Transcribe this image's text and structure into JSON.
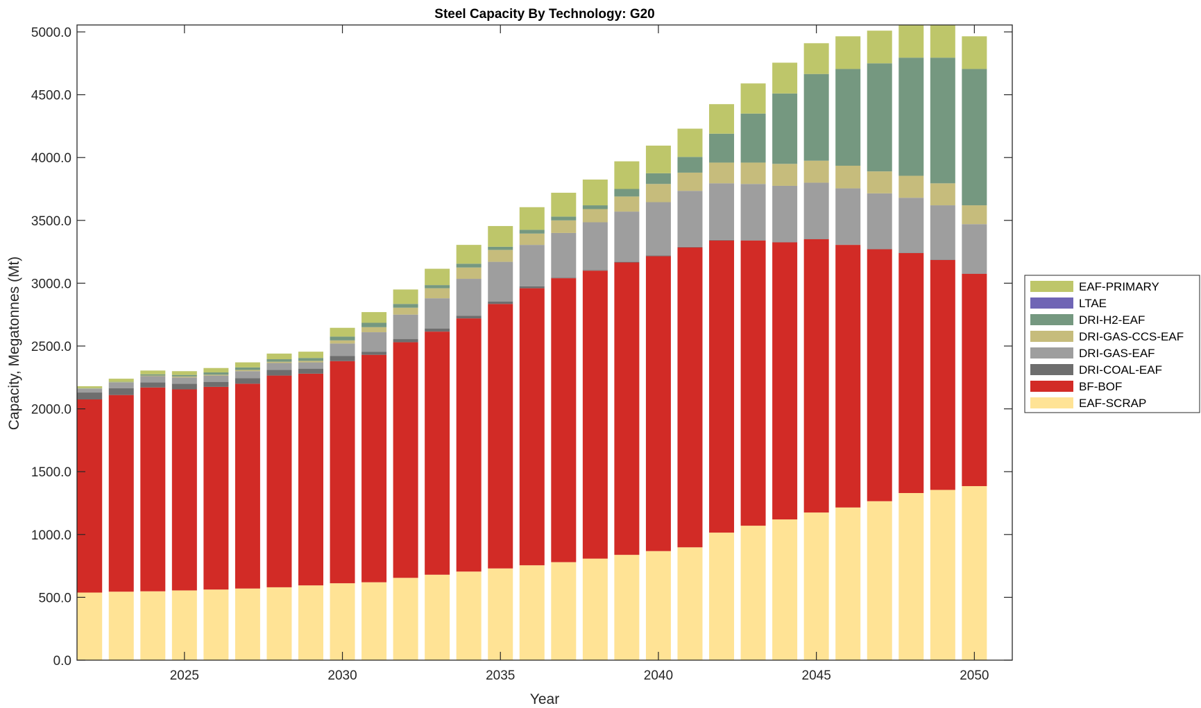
{
  "chart_data": {
    "type": "bar",
    "stacked": true,
    "title": "Steel Capacity By Technology: G20",
    "xlabel": "Year",
    "ylabel": "Capacity, Megatonnes (Mt)",
    "ylim": [
      0,
      5000
    ],
    "yticks": [
      0,
      500,
      1000,
      1500,
      2000,
      2500,
      3000,
      3500,
      4000,
      4500,
      5000
    ],
    "ytick_labels": [
      "0.0",
      "500.0",
      "1000.0",
      "1500.0",
      "2000.0",
      "2500.0",
      "3000.0",
      "3500.0",
      "4000.0",
      "4500.0",
      "5000.0"
    ],
    "xticks": [
      2025,
      2030,
      2035,
      2040,
      2045,
      2050
    ],
    "xtick_labels": [
      "2025",
      "2030",
      "2035",
      "2040",
      "2045",
      "2050"
    ],
    "xlim": [
      2021.6,
      2051.2
    ],
    "grid": false,
    "legend_position": "right",
    "categories": [
      2022,
      2023,
      2024,
      2025,
      2026,
      2027,
      2028,
      2029,
      2030,
      2031,
      2032,
      2033,
      2034,
      2035,
      2036,
      2037,
      2038,
      2039,
      2040,
      2041,
      2042,
      2043,
      2044,
      2045,
      2046,
      2047,
      2048,
      2049,
      2050
    ],
    "series": [
      {
        "name": "EAF-SCRAP",
        "color": "#FFE395",
        "values": [
          538,
          545,
          548,
          555,
          562,
          570,
          580,
          595,
          612,
          620,
          655,
          680,
          705,
          730,
          755,
          780,
          808,
          838,
          868,
          898,
          1015,
          1070,
          1120,
          1175,
          1215,
          1265,
          1330,
          1355,
          1385
        ]
      },
      {
        "name": "BF-BOF",
        "color": "#D22B26",
        "values": [
          1537,
          1565,
          1622,
          1600,
          1613,
          1630,
          1685,
          1685,
          1768,
          1810,
          1875,
          1935,
          2015,
          2105,
          2205,
          2260,
          2292,
          2327,
          2347,
          2387,
          2325,
          2270,
          2205,
          2175,
          2090,
          2005,
          1910,
          1830,
          1690
        ]
      },
      {
        "name": "DRI-COAL-EAF",
        "color": "#6E6E6E",
        "values": [
          55,
          55,
          40,
          45,
          40,
          45,
          45,
          40,
          40,
          25,
          25,
          25,
          20,
          20,
          15,
          5,
          5,
          5,
          5,
          5,
          5,
          2,
          2,
          2,
          2,
          2,
          2,
          2,
          2
        ]
      },
      {
        "name": "DRI-GAS-EAF",
        "color": "#9E9E9E",
        "values": [
          30,
          45,
          50,
          50,
          50,
          55,
          55,
          50,
          100,
          155,
          195,
          240,
          295,
          315,
          330,
          355,
          380,
          400,
          425,
          445,
          450,
          448,
          448,
          448,
          448,
          443,
          438,
          433,
          393
        ]
      },
      {
        "name": "DRI-GAS-CCS-EAF",
        "color": "#C6BC7C",
        "values": [
          2,
          2,
          5,
          8,
          7,
          10,
          10,
          12,
          25,
          40,
          55,
          80,
          90,
          95,
          90,
          100,
          105,
          120,
          145,
          145,
          165,
          170,
          175,
          175,
          180,
          175,
          175,
          175,
          150
        ]
      },
      {
        "name": "DRI-H2-EAF",
        "color": "#759880",
        "values": [
          3,
          3,
          10,
          12,
          18,
          20,
          20,
          23,
          30,
          35,
          30,
          25,
          30,
          25,
          30,
          30,
          30,
          60,
          85,
          125,
          230,
          390,
          560,
          690,
          770,
          860,
          940,
          1000,
          1085
        ]
      },
      {
        "name": "LTAE",
        "color": "#6F65B5",
        "values": [
          0,
          0,
          0,
          0,
          0,
          0,
          0,
          0,
          0,
          0,
          0,
          0,
          0,
          0,
          0,
          0,
          0,
          0,
          0,
          0,
          0,
          0,
          0,
          0,
          0,
          0,
          0,
          0,
          0
        ]
      },
      {
        "name": "EAF-PRIMARY",
        "color": "#BEC66A",
        "values": [
          15,
          25,
          30,
          30,
          35,
          40,
          45,
          50,
          70,
          85,
          115,
          130,
          150,
          165,
          180,
          190,
          205,
          220,
          220,
          225,
          235,
          240,
          245,
          245,
          260,
          260,
          260,
          260,
          260
        ]
      }
    ],
    "legend_order": [
      "EAF-PRIMARY",
      "LTAE",
      "DRI-H2-EAF",
      "DRI-GAS-CCS-EAF",
      "DRI-GAS-EAF",
      "DRI-COAL-EAF",
      "BF-BOF",
      "EAF-SCRAP"
    ]
  }
}
